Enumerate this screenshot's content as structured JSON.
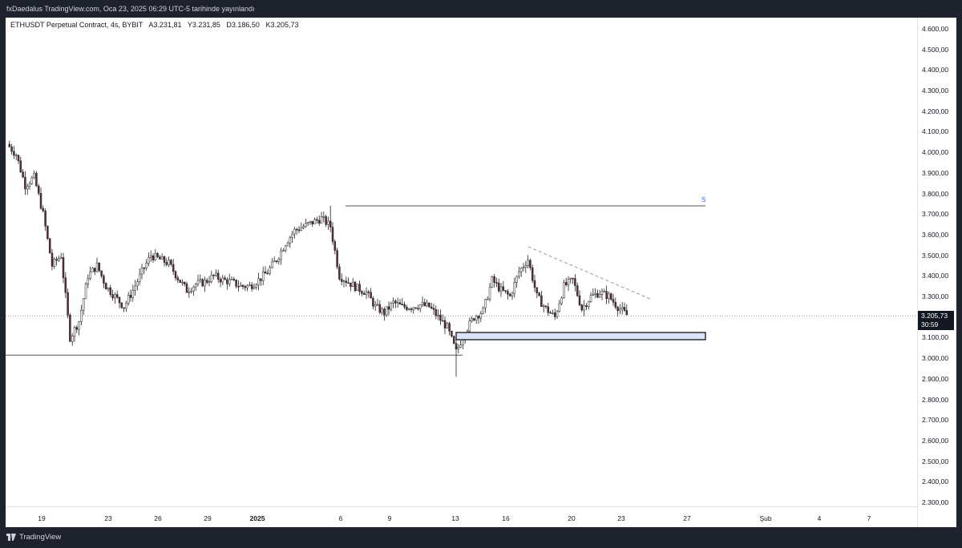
{
  "header": {
    "publish_info": "fxDaedalus TradingView.com, Oca 23, 2025 06:29 UTC-5 tarihinde yayınlandı"
  },
  "legend": {
    "symbol": "ETHUSDT Perpetual Contract, 4s, BYBIT",
    "open": "A3.231,81",
    "high": "Y3.231,85",
    "low": "D3.186,50",
    "close": "K3.205,73"
  },
  "price_badge": {
    "price": "3.205,73",
    "countdown": "30:59"
  },
  "drawing_label": "S",
  "footer": {
    "brand": "TradingView"
  },
  "colors": {
    "up": "#ffffff",
    "down": "#5d2e34",
    "wick": "#222222",
    "zone_fill": "#dbe4fb",
    "zone_border": "#000000",
    "trendline": "#999999",
    "level_line": "#555555",
    "label": "#2962ff"
  },
  "icons": [
    "tradingview-logo-icon"
  ],
  "chart_data": {
    "type": "candlestick",
    "title": "ETHUSDT Perpetual Contract, 4s, BYBIT",
    "y_ticks": [
      "4.600,00",
      "4.500,00",
      "4.400,00",
      "4.300,00",
      "4.200,00",
      "4.100,00",
      "4.000,00",
      "3.900,00",
      "3.800,00",
      "3.700,00",
      "3.600,00",
      "3.500,00",
      "3.400,00",
      "3.300,00",
      "3.200,00",
      "3.100,00",
      "3.000,00",
      "2.900,00",
      "2.800,00",
      "2.700,00",
      "2.600,00",
      "2.500,00",
      "2.400,00",
      "2.300,00"
    ],
    "x_ticks": [
      "19",
      "23",
      "26",
      "29",
      "2025",
      "6",
      "9",
      "13",
      "16",
      "20",
      "23",
      "27",
      "Şub",
      "4",
      "7"
    ],
    "ylim": [
      2260,
      4640
    ],
    "last_price": 3205.73,
    "path": [
      [
        0,
        4040
      ],
      [
        4,
        3990
      ],
      [
        8,
        3840
      ],
      [
        12,
        3880
      ],
      [
        16,
        3700
      ],
      [
        20,
        3450
      ],
      [
        24,
        3500
      ],
      [
        28,
        3100
      ],
      [
        32,
        3180
      ],
      [
        36,
        3400
      ],
      [
        40,
        3450
      ],
      [
        44,
        3350
      ],
      [
        48,
        3300
      ],
      [
        52,
        3250
      ],
      [
        56,
        3330
      ],
      [
        60,
        3420
      ],
      [
        64,
        3500
      ],
      [
        68,
        3480
      ],
      [
        72,
        3460
      ],
      [
        76,
        3390
      ],
      [
        80,
        3330
      ],
      [
        84,
        3360
      ],
      [
        88,
        3370
      ],
      [
        92,
        3400
      ],
      [
        96,
        3380
      ],
      [
        100,
        3370
      ],
      [
        104,
        3350
      ],
      [
        108,
        3350
      ],
      [
        112,
        3380
      ],
      [
        116,
        3420
      ],
      [
        120,
        3480
      ],
      [
        124,
        3560
      ],
      [
        128,
        3620
      ],
      [
        132,
        3640
      ],
      [
        136,
        3660
      ],
      [
        140,
        3680
      ],
      [
        144,
        3640
      ],
      [
        148,
        3400
      ],
      [
        152,
        3370
      ],
      [
        156,
        3340
      ],
      [
        160,
        3320
      ],
      [
        164,
        3250
      ],
      [
        168,
        3220
      ],
      [
        172,
        3270
      ],
      [
        176,
        3250
      ],
      [
        180,
        3250
      ],
      [
        184,
        3260
      ],
      [
        188,
        3250
      ],
      [
        192,
        3200
      ],
      [
        196,
        3150
      ],
      [
        200,
        3030
      ],
      [
        204,
        3130
      ],
      [
        208,
        3200
      ],
      [
        212,
        3230
      ],
      [
        216,
        3380
      ],
      [
        220,
        3330
      ],
      [
        224,
        3300
      ],
      [
        228,
        3420
      ],
      [
        232,
        3480
      ],
      [
        236,
        3300
      ],
      [
        240,
        3240
      ],
      [
        244,
        3200
      ],
      [
        248,
        3350
      ],
      [
        252,
        3380
      ],
      [
        256,
        3240
      ],
      [
        260,
        3300
      ],
      [
        264,
        3320
      ],
      [
        268,
        3300
      ],
      [
        272,
        3250
      ],
      [
        276,
        3210
      ]
    ],
    "annotations": [
      {
        "type": "horizontal-ray",
        "label": "S",
        "price": 3740
      },
      {
        "type": "horizontal-ray",
        "price": 3015
      },
      {
        "type": "zone",
        "price_top": 3125,
        "price_bottom": 3090
      },
      {
        "type": "trendline",
        "style": "dashed"
      }
    ]
  }
}
